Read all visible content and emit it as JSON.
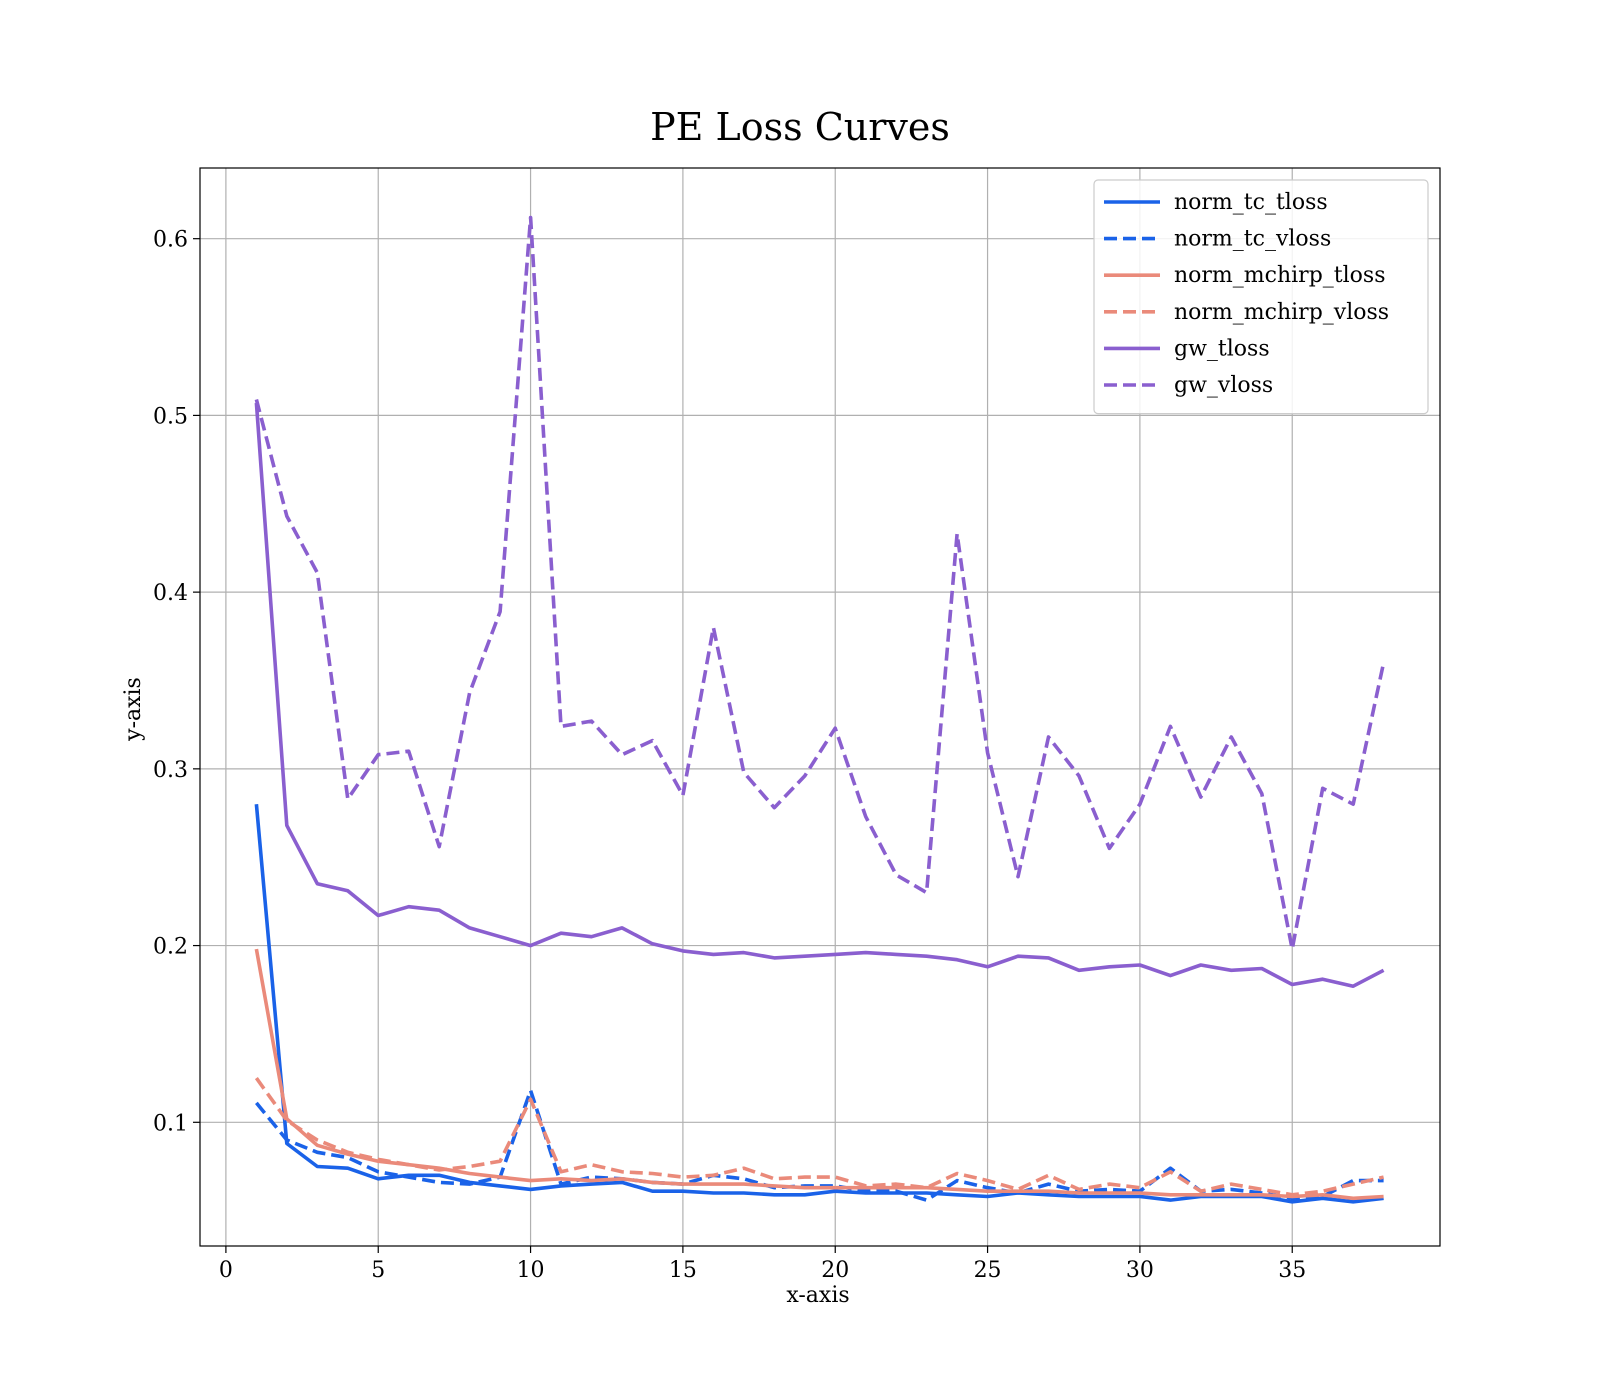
{
  "chart_data": {
    "type": "line",
    "title": "PE Loss Curves",
    "xlabel": "x-axis",
    "ylabel": "y-axis",
    "xlim": [
      -0.85,
      39.85
    ],
    "ylim": [
      0.03,
      0.64
    ],
    "xticks": [
      0,
      5,
      10,
      15,
      20,
      25,
      30,
      35
    ],
    "yticks": [
      0.1,
      0.2,
      0.3,
      0.4,
      0.5,
      0.6
    ],
    "grid": true,
    "legend_position": "top-right",
    "x": [
      1,
      2,
      3,
      4,
      5,
      6,
      7,
      8,
      9,
      10,
      11,
      12,
      13,
      14,
      15,
      16,
      17,
      18,
      19,
      20,
      21,
      22,
      23,
      24,
      25,
      26,
      27,
      28,
      29,
      30,
      31,
      32,
      33,
      34,
      35,
      36,
      37,
      38
    ],
    "series": [
      {
        "name": "norm_tc_tloss",
        "color": "#1a62e8",
        "dash": "solid",
        "values": [
          0.28,
          0.088,
          0.075,
          0.074,
          0.068,
          0.07,
          0.07,
          0.066,
          0.064,
          0.062,
          0.064,
          0.065,
          0.066,
          0.061,
          0.061,
          0.06,
          0.06,
          0.059,
          0.059,
          0.061,
          0.06,
          0.06,
          0.06,
          0.059,
          0.058,
          0.06,
          0.059,
          0.058,
          0.058,
          0.058,
          0.056,
          0.058,
          0.058,
          0.058,
          0.055,
          0.057,
          0.055,
          0.057
        ]
      },
      {
        "name": "norm_tc_vloss",
        "color": "#1a62e8",
        "dash": "dashed",
        "values": [
          0.111,
          0.09,
          0.083,
          0.08,
          0.072,
          0.069,
          0.066,
          0.065,
          0.069,
          0.118,
          0.065,
          0.069,
          0.068,
          0.066,
          0.065,
          0.07,
          0.068,
          0.063,
          0.064,
          0.064,
          0.061,
          0.061,
          0.056,
          0.067,
          0.063,
          0.06,
          0.065,
          0.061,
          0.062,
          0.061,
          0.074,
          0.061,
          0.062,
          0.06,
          0.057,
          0.058,
          0.067,
          0.067
        ]
      },
      {
        "name": "norm_mchirp_tloss",
        "color": "#ea8a7a",
        "dash": "solid",
        "values": [
          0.198,
          0.102,
          0.087,
          0.082,
          0.078,
          0.076,
          0.074,
          0.071,
          0.069,
          0.067,
          0.068,
          0.067,
          0.068,
          0.066,
          0.065,
          0.065,
          0.065,
          0.064,
          0.063,
          0.063,
          0.063,
          0.063,
          0.063,
          0.062,
          0.061,
          0.061,
          0.061,
          0.06,
          0.06,
          0.06,
          0.059,
          0.059,
          0.059,
          0.059,
          0.058,
          0.059,
          0.057,
          0.058
        ]
      },
      {
        "name": "norm_mchirp_vloss",
        "color": "#ea8a7a",
        "dash": "dashed",
        "values": [
          0.125,
          0.101,
          0.09,
          0.083,
          0.079,
          0.076,
          0.073,
          0.075,
          0.078,
          0.113,
          0.072,
          0.076,
          0.072,
          0.071,
          0.069,
          0.07,
          0.074,
          0.068,
          0.069,
          0.069,
          0.064,
          0.065,
          0.063,
          0.071,
          0.067,
          0.062,
          0.07,
          0.062,
          0.065,
          0.063,
          0.072,
          0.061,
          0.065,
          0.062,
          0.059,
          0.061,
          0.065,
          0.069
        ]
      },
      {
        "name": "gw_tloss",
        "color": "#8a5fcf",
        "dash": "solid",
        "values": [
          0.507,
          0.268,
          0.235,
          0.231,
          0.217,
          0.222,
          0.22,
          0.21,
          0.205,
          0.2,
          0.207,
          0.205,
          0.21,
          0.201,
          0.197,
          0.195,
          0.196,
          0.193,
          0.194,
          0.195,
          0.196,
          0.195,
          0.194,
          0.192,
          0.188,
          0.194,
          0.193,
          0.186,
          0.188,
          0.189,
          0.183,
          0.189,
          0.186,
          0.187,
          0.178,
          0.181,
          0.177,
          0.186
        ]
      },
      {
        "name": "gw_vloss",
        "color": "#8a5fcf",
        "dash": "dashed",
        "values": [
          0.509,
          0.443,
          0.411,
          0.283,
          0.308,
          0.31,
          0.256,
          0.343,
          0.389,
          0.612,
          0.324,
          0.327,
          0.308,
          0.316,
          0.285,
          0.38,
          0.298,
          0.278,
          0.296,
          0.323,
          0.273,
          0.24,
          0.23,
          0.433,
          0.309,
          0.239,
          0.318,
          0.296,
          0.255,
          0.28,
          0.324,
          0.284,
          0.318,
          0.286,
          0.198,
          0.289,
          0.28,
          0.36
        ]
      }
    ]
  }
}
